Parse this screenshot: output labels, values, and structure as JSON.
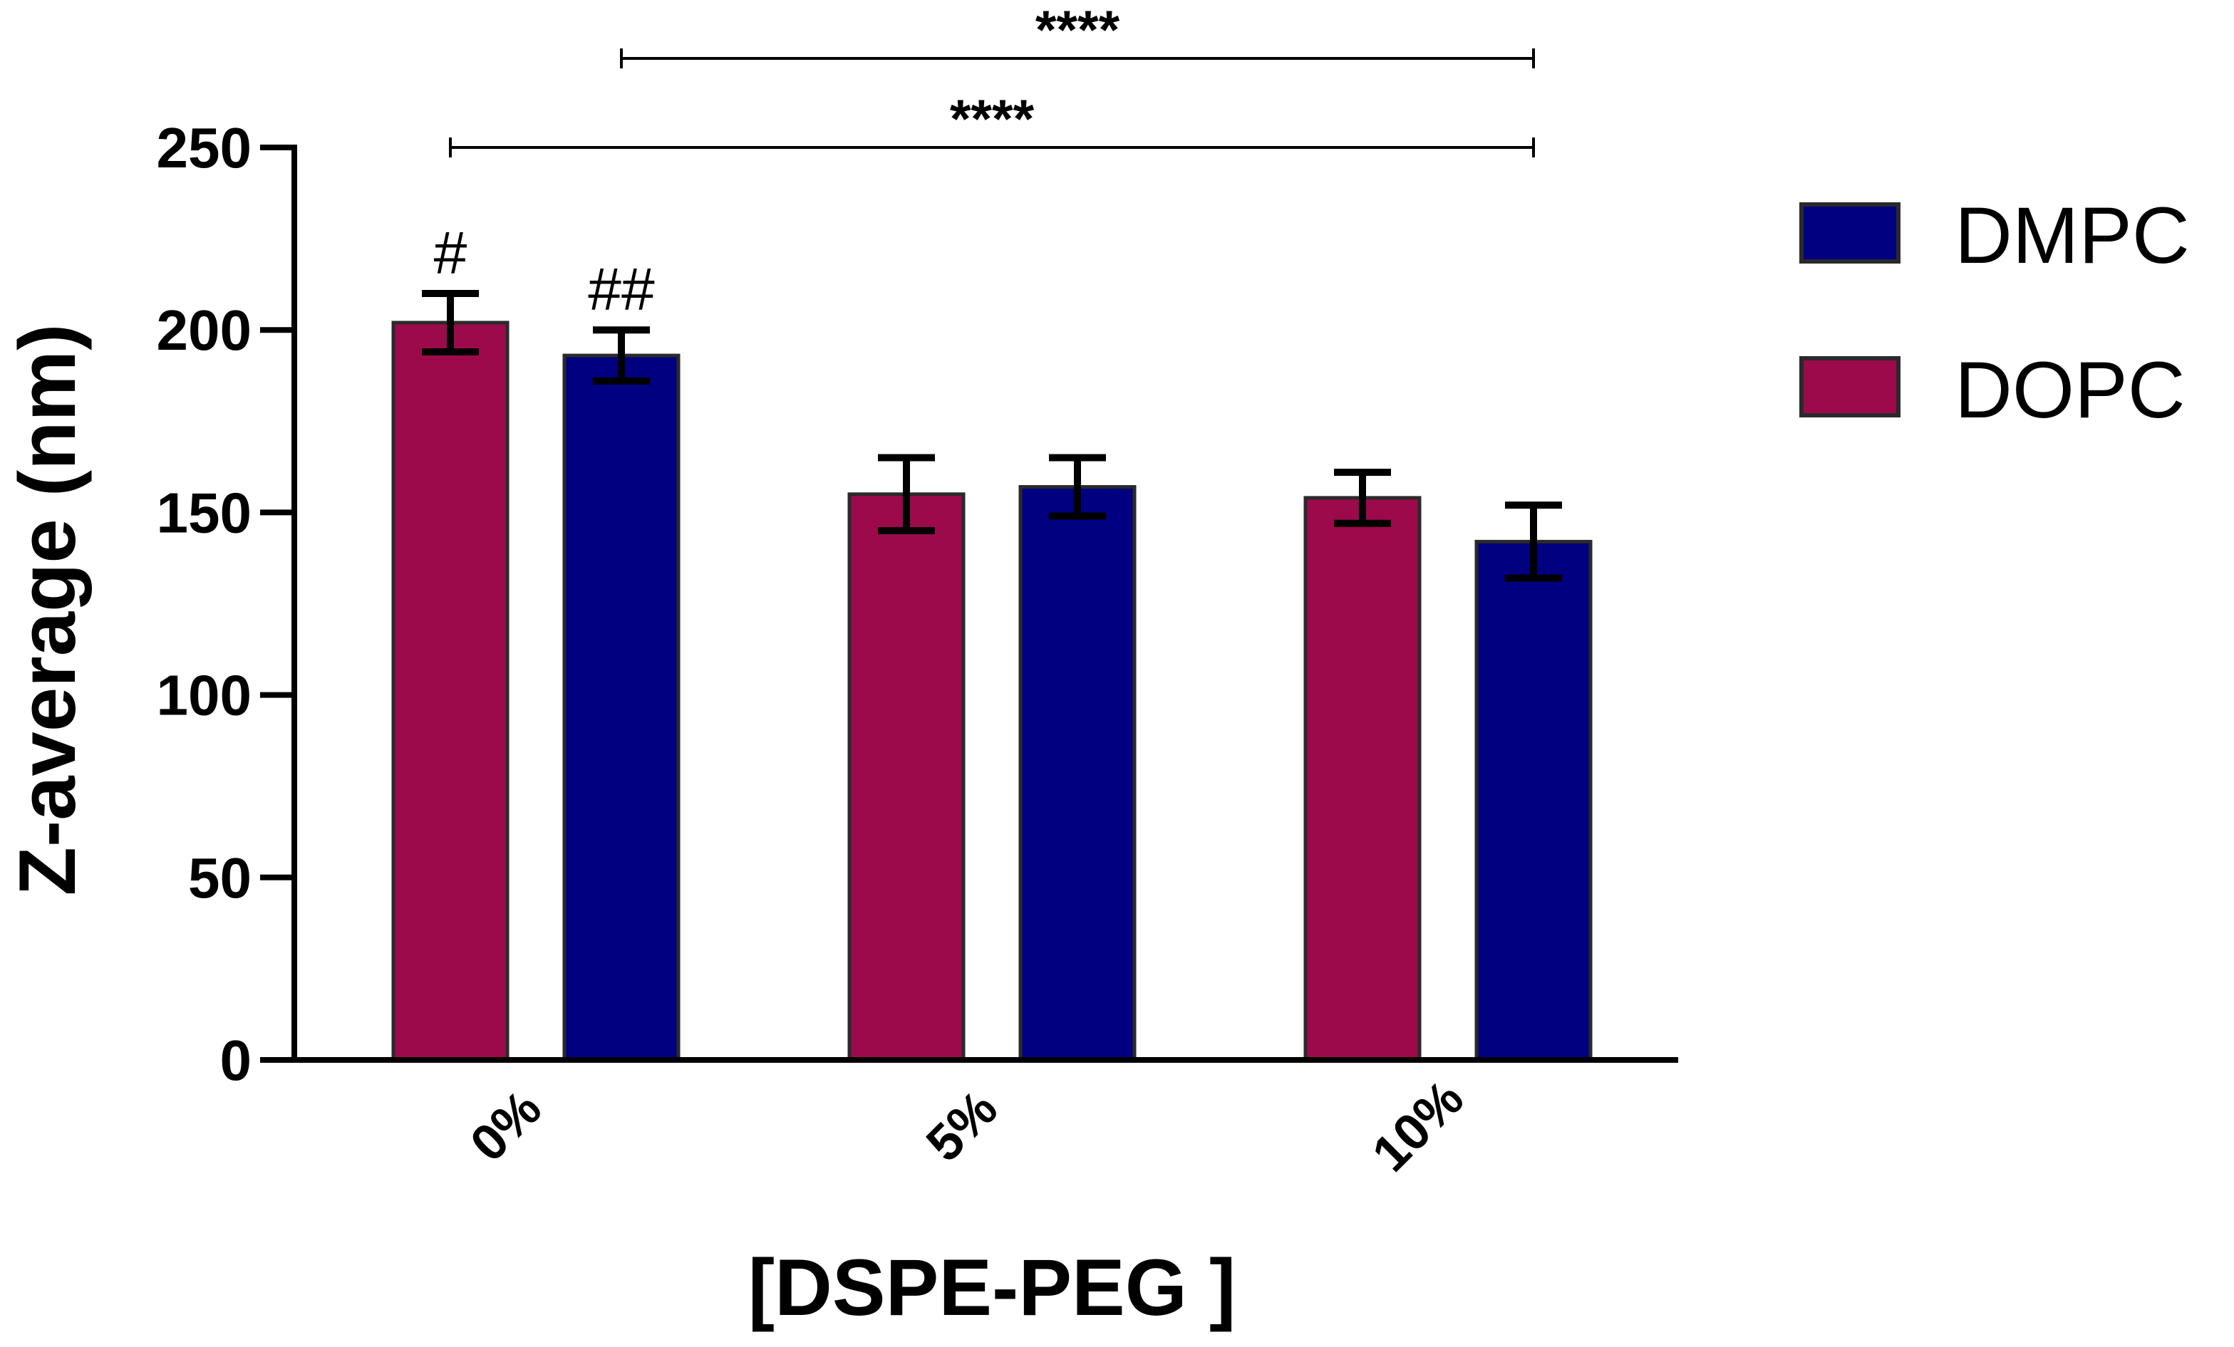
{
  "colors": {
    "DMPC": "#000080",
    "DOPC": "#9c0a4c"
  },
  "chart_data": {
    "type": "bar",
    "xlabel": "[DSPE-PEG ]",
    "ylabel": "Z-average (nm)",
    "ylim": [
      0,
      250
    ],
    "yticks": [
      0,
      50,
      100,
      150,
      200,
      250
    ],
    "categories": [
      "0%",
      "5%",
      "10%"
    ],
    "series": [
      {
        "name": "DOPC",
        "values": [
          202,
          155,
          154
        ],
        "errors": [
          8,
          10,
          7
        ]
      },
      {
        "name": "DMPC",
        "values": [
          193,
          157,
          142
        ],
        "errors": [
          7,
          8,
          10
        ]
      }
    ],
    "legend": {
      "position": "right",
      "entries": [
        "DMPC",
        "DOPC"
      ]
    },
    "annotations": {
      "markers": [
        {
          "text": "#",
          "category": 0,
          "series": 0
        },
        {
          "text": "##",
          "category": 0,
          "series": 1
        }
      ],
      "significance": [
        {
          "text": "****",
          "from": {
            "category": 0,
            "series": 1
          },
          "to": {
            "category": 2,
            "series": 1
          },
          "level": 1
        },
        {
          "text": "****",
          "from": {
            "category": 0,
            "series": 0
          },
          "to": {
            "category": 2,
            "series": 1
          },
          "level": 0
        }
      ]
    }
  }
}
